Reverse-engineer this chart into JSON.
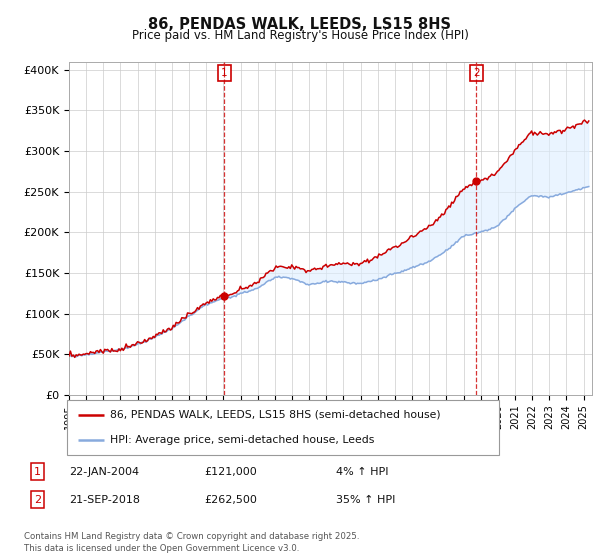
{
  "title": "86, PENDAS WALK, LEEDS, LS15 8HS",
  "subtitle": "Price paid vs. HM Land Registry's House Price Index (HPI)",
  "ylabel_ticks": [
    "£0",
    "£50K",
    "£100K",
    "£150K",
    "£200K",
    "£250K",
    "£300K",
    "£350K",
    "£400K"
  ],
  "ytick_values": [
    0,
    50000,
    100000,
    150000,
    200000,
    250000,
    300000,
    350000,
    400000
  ],
  "ylim": [
    0,
    410000
  ],
  "xlim_start": 1995.0,
  "xlim_end": 2025.5,
  "marker1_x": 2004.06,
  "marker1_y": 121000,
  "marker1_label": "1",
  "marker2_x": 2018.73,
  "marker2_y": 262500,
  "marker2_label": "2",
  "line1_color": "#cc0000",
  "line2_color": "#88aadd",
  "fill_color": "#ddeeff",
  "marker_box_color": "#cc0000",
  "legend_line1": "86, PENDAS WALK, LEEDS, LS15 8HS (semi-detached house)",
  "legend_line2": "HPI: Average price, semi-detached house, Leeds",
  "table_row1": [
    "1",
    "22-JAN-2004",
    "£121,000",
    "4% ↑ HPI"
  ],
  "table_row2": [
    "2",
    "21-SEP-2018",
    "£262,500",
    "35% ↑ HPI"
  ],
  "footnote": "Contains HM Land Registry data © Crown copyright and database right 2025.\nThis data is licensed under the Open Government Licence v3.0.",
  "background_color": "#ffffff",
  "grid_color": "#cccccc"
}
